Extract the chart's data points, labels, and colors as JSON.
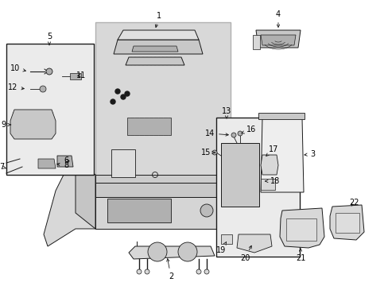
{
  "bg": "#ffffff",
  "lc": "#1a1a1a",
  "gray1": "#c8c8c8",
  "gray2": "#d8d8d8",
  "gray3": "#e8e8e8",
  "gray4": "#b0b0b0",
  "fs": 7,
  "lw": 0.7,
  "figw": 4.89,
  "figh": 3.6,
  "dpi": 100
}
